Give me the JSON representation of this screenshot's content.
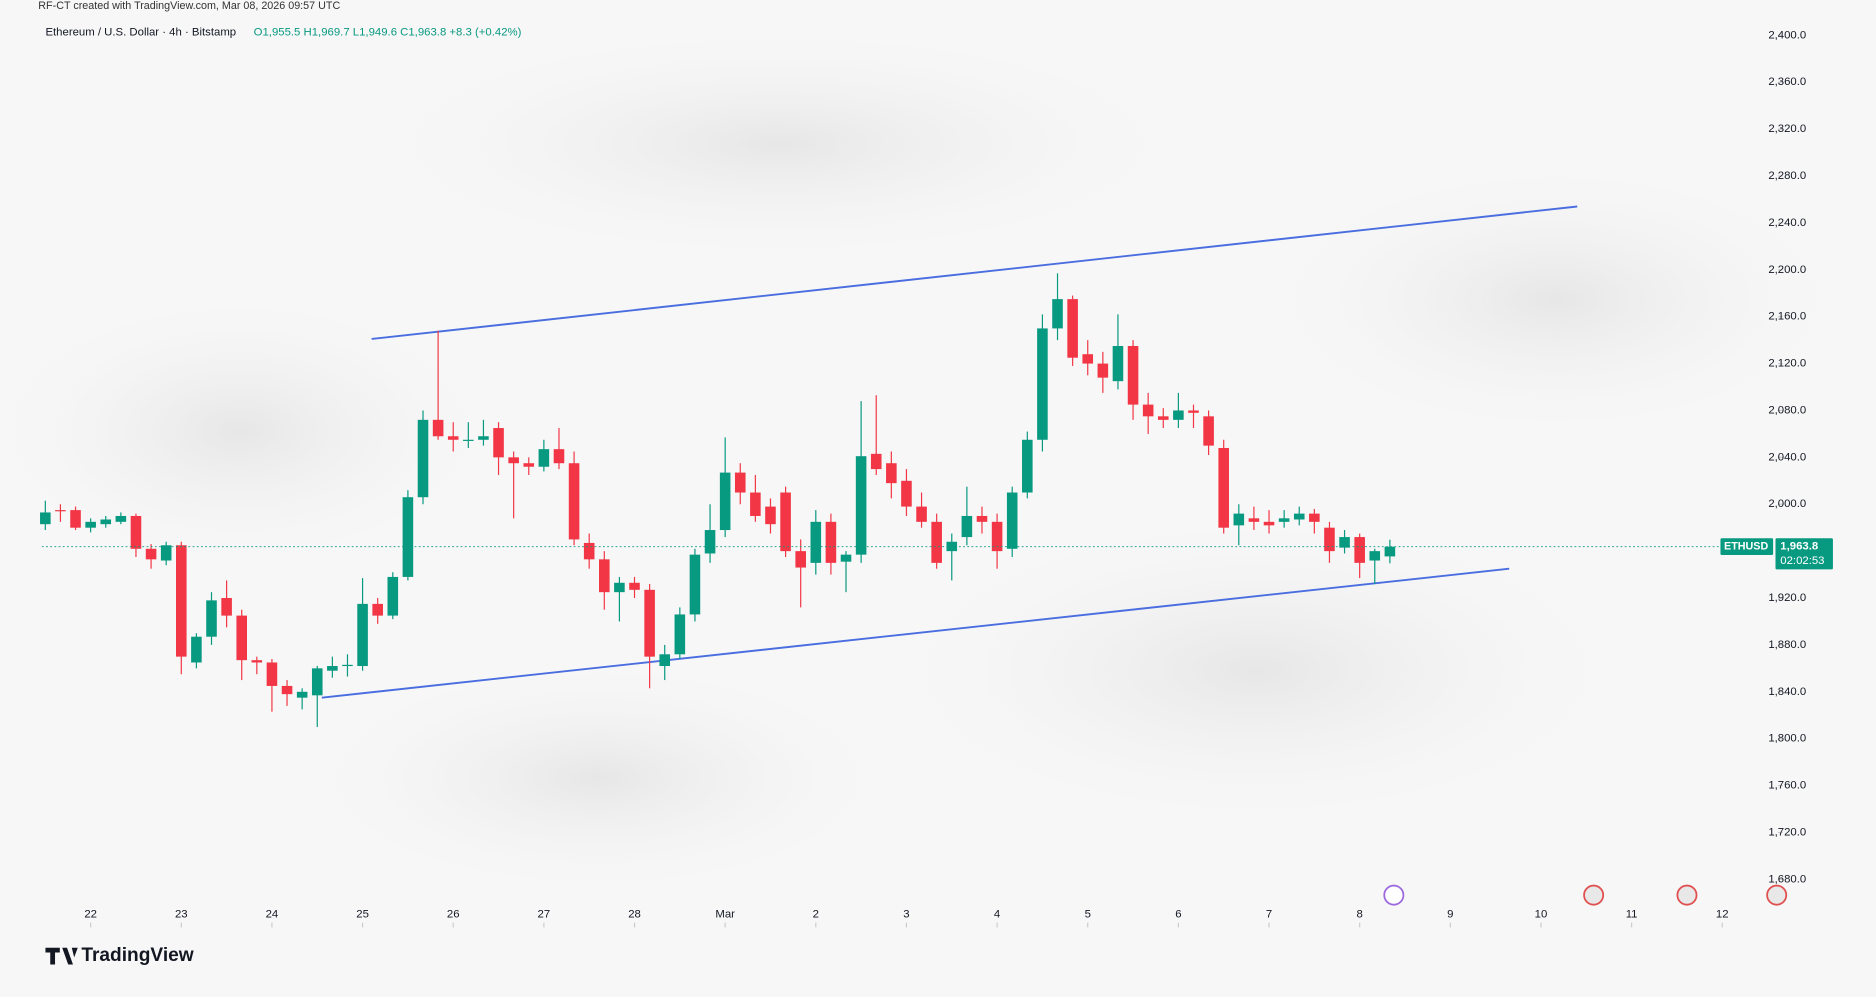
{
  "chart_data": {
    "type": "candlestick",
    "watermark": "RF-CT created with TradingView.com, Mar 08, 2026 09:57 UTC",
    "title": "Ethereum / U.S. Dollar · 4h · Bitstamp",
    "ohlc_text": "O1,955.5 H1,969.7 L1,949.6 C1,963.8 +8.3 (+0.42%)",
    "symbol": "ETHUSD",
    "last_price_label": "1,963.8",
    "countdown": "02:02:53",
    "logo": "TradingView",
    "up_color": "#089981",
    "down_color": "#f23645",
    "open": [
      1983,
      1995,
      1995,
      1980,
      1983,
      1985,
      1990,
      1962,
      1952,
      1965,
      1865,
      1887,
      1920,
      1905,
      1867,
      1865,
      1845,
      1835,
      1837,
      1858,
      1862,
      1862,
      1915,
      1905,
      1938,
      2006,
      2072,
      2058,
      2055,
      2055,
      2065,
      2040,
      2035,
      2032,
      2047,
      2035,
      1967,
      1953,
      1925,
      1933,
      1927,
      1862,
      1872,
      1906,
      1958,
      1978,
      2027,
      2010,
      1998,
      2010,
      1960,
      1950,
      1985,
      1951,
      1957,
      2043,
      2035,
      2020,
      1998,
      1985,
      1960,
      1972,
      1990,
      1985,
      1962,
      2010,
      2055,
      2150,
      2175,
      2128,
      2120,
      2105,
      2135,
      2085,
      2075,
      2072,
      2080,
      2075,
      2048,
      1982,
      1988,
      1985,
      1985,
      1987,
      1992,
      1980,
      1963,
      1972,
      1952,
      1955.5
    ],
    "high": [
      2003,
      2000,
      1998,
      1988,
      1990,
      1993,
      1992,
      1966,
      1968,
      1968,
      1890,
      1925,
      1935,
      1910,
      1870,
      1868,
      1850,
      1843,
      1862,
      1870,
      1872,
      1937,
      1920,
      1942,
      2012,
      2080,
      2148,
      2070,
      2070,
      2072,
      2070,
      2045,
      2040,
      2055,
      2065,
      2045,
      1975,
      1960,
      1938,
      1938,
      1932,
      1880,
      1912,
      1962,
      2000,
      2057,
      2035,
      2025,
      2005,
      2015,
      1970,
      1995,
      1992,
      1960,
      2088,
      2093,
      2045,
      2030,
      2010,
      1992,
      1975,
      2015,
      1998,
      1992,
      2015,
      2062,
      2162,
      2197,
      2178,
      2140,
      2130,
      2162,
      2140,
      2095,
      2082,
      2095,
      2085,
      2080,
      2055,
      2000,
      1998,
      1995,
      1995,
      1998,
      1996,
      1985,
      1978,
      1975,
      1962,
      1969.7
    ],
    "low": [
      1978,
      1985,
      1978,
      1976,
      1980,
      1983,
      1955,
      1945,
      1948,
      1855,
      1860,
      1880,
      1895,
      1850,
      1855,
      1823,
      1828,
      1825,
      1810,
      1852,
      1853,
      1858,
      1898,
      1902,
      1935,
      2000,
      2055,
      2045,
      2048,
      2050,
      2025,
      1988,
      2025,
      2028,
      2030,
      1965,
      1945,
      1910,
      1900,
      1920,
      1843,
      1850,
      1868,
      1900,
      1950,
      1972,
      2000,
      1985,
      1975,
      1955,
      1912,
      1940,
      1940,
      1925,
      1950,
      2025,
      2005,
      1990,
      1980,
      1945,
      1935,
      1965,
      1975,
      1945,
      1955,
      2005,
      2045,
      2140,
      2118,
      2110,
      2095,
      2098,
      2072,
      2060,
      2065,
      2065,
      2065,
      2042,
      1975,
      1965,
      1978,
      1975,
      1980,
      1982,
      1975,
      1950,
      1958,
      1937,
      1932,
      1949.6
    ],
    "close": [
      1993,
      1994,
      1980,
      1985,
      1987,
      1990,
      1962,
      1953,
      1965,
      1870,
      1887,
      1918,
      1905,
      1867,
      1865,
      1845,
      1838,
      1840,
      1860,
      1862,
      1863,
      1915,
      1905,
      1938,
      2006,
      2072,
      2058,
      2055,
      2055,
      2058,
      2040,
      2035,
      2032,
      2047,
      2035,
      1970,
      1953,
      1925,
      1933,
      1927,
      1870,
      1872,
      1906,
      1957,
      1978,
      2027,
      2010,
      1990,
      1983,
      1960,
      1946,
      1985,
      1950,
      1957,
      2041,
      2030,
      2018,
      1998,
      1985,
      1950,
      1968,
      1990,
      1985,
      1960,
      2010,
      2055,
      2150,
      2175,
      2125,
      2120,
      2108,
      2135,
      2085,
      2075,
      2072,
      2080,
      2078,
      2050,
      1980,
      1992,
      1985,
      1982,
      1988,
      1992,
      1985,
      1960,
      1972,
      1950,
      1960,
      1963.8
    ],
    "xlim": [
      -3,
      115
    ],
    "xticks": [
      {
        "value": 3,
        "label": "22"
      },
      {
        "value": 9,
        "label": "23"
      },
      {
        "value": 15,
        "label": "24"
      },
      {
        "value": 21,
        "label": "25"
      },
      {
        "value": 27,
        "label": "26"
      },
      {
        "value": 33,
        "label": "27"
      },
      {
        "value": 39,
        "label": "28"
      },
      {
        "value": 45,
        "label": "Mar"
      },
      {
        "value": 51,
        "label": "2"
      },
      {
        "value": 57,
        "label": "3"
      },
      {
        "value": 63,
        "label": "4"
      },
      {
        "value": 69,
        "label": "5"
      },
      {
        "value": 75,
        "label": "6"
      },
      {
        "value": 81,
        "label": "7"
      },
      {
        "value": 87,
        "label": "8"
      },
      {
        "value": 93,
        "label": "9"
      },
      {
        "value": 99,
        "label": "10"
      },
      {
        "value": 105,
        "label": "11"
      },
      {
        "value": 111,
        "label": "12"
      }
    ],
    "ylim": [
      1639,
      2430
    ],
    "yticks": [
      {
        "value": 1680,
        "label": "1,680.0"
      },
      {
        "value": 1720,
        "label": "1,720.0"
      },
      {
        "value": 1760,
        "label": "1,760.0"
      },
      {
        "value": 1800,
        "label": "1,800.0"
      },
      {
        "value": 1840,
        "label": "1,840.0"
      },
      {
        "value": 1880,
        "label": "1,880.0"
      },
      {
        "value": 1920,
        "label": "1,920.0"
      },
      {
        "value": 2000,
        "label": "2,000.0"
      },
      {
        "value": 2040,
        "label": "2,040.0"
      },
      {
        "value": 2080,
        "label": "2,080.0"
      },
      {
        "value": 2120,
        "label": "2,120.0"
      },
      {
        "value": 2160,
        "label": "2,160.0"
      },
      {
        "value": 2200,
        "label": "2,200.0"
      },
      {
        "value": 2240,
        "label": "2,240.0"
      },
      {
        "value": 2280,
        "label": "2,280.0"
      },
      {
        "value": 2320,
        "label": "2,320.0"
      },
      {
        "value": 2360,
        "label": "2,360.0"
      },
      {
        "value": 2400,
        "label": "2,400.0"
      }
    ],
    "trend_lines": [
      {
        "color": "#4a6ee0",
        "x": [
          21.6,
          101.4
        ],
        "y": [
          2141,
          2254
        ]
      },
      {
        "color": "#4a6ee0",
        "x": [
          18.3,
          96.9
        ],
        "y": [
          1835,
          1945
        ]
      }
    ]
  }
}
